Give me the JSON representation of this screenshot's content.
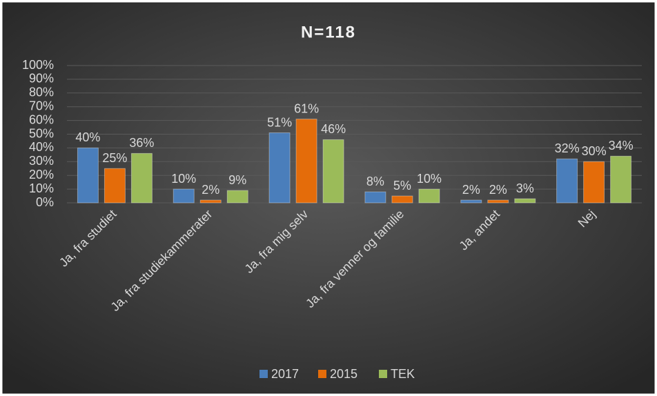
{
  "chart_data": {
    "type": "bar",
    "title": "N=118",
    "categories": [
      "Ja, fra studiet",
      "Ja, fra studiekammerater",
      "Ja, fra mig selv",
      "Ja, fra venner og familie",
      "Ja, andet",
      "Nej"
    ],
    "series": [
      {
        "name": "2017",
        "color": "#4a7ebb",
        "values": [
          40,
          10,
          51,
          8,
          2,
          32
        ],
        "value_labels": [
          "40%",
          "10%",
          "51%",
          "8%",
          "2%",
          "32%"
        ]
      },
      {
        "name": "2015",
        "color": "#e46c0a",
        "values": [
          25,
          2,
          61,
          5,
          2,
          30
        ],
        "value_labels": [
          "25%",
          "2%",
          "61%",
          "5%",
          "2%",
          "30%"
        ]
      },
      {
        "name": "TEK",
        "color": "#9bbb59",
        "values": [
          36,
          9,
          46,
          10,
          3,
          34
        ],
        "value_labels": [
          "36%",
          "9%",
          "46%",
          "10%",
          "3%",
          "34%"
        ]
      }
    ],
    "ylim": [
      0,
      100
    ],
    "yticks": [
      {
        "value": 0,
        "label": "0%"
      },
      {
        "value": 10,
        "label": "10%"
      },
      {
        "value": 20,
        "label": "20%"
      },
      {
        "value": 30,
        "label": "30%"
      },
      {
        "value": 40,
        "label": "40%"
      },
      {
        "value": 50,
        "label": "50%"
      },
      {
        "value": 60,
        "label": "60%"
      },
      {
        "value": 70,
        "label": "70%"
      },
      {
        "value": 80,
        "label": "80%"
      },
      {
        "value": 90,
        "label": "90%"
      },
      {
        "value": 100,
        "label": "100%"
      }
    ],
    "grid": true,
    "legend": "bottom"
  }
}
